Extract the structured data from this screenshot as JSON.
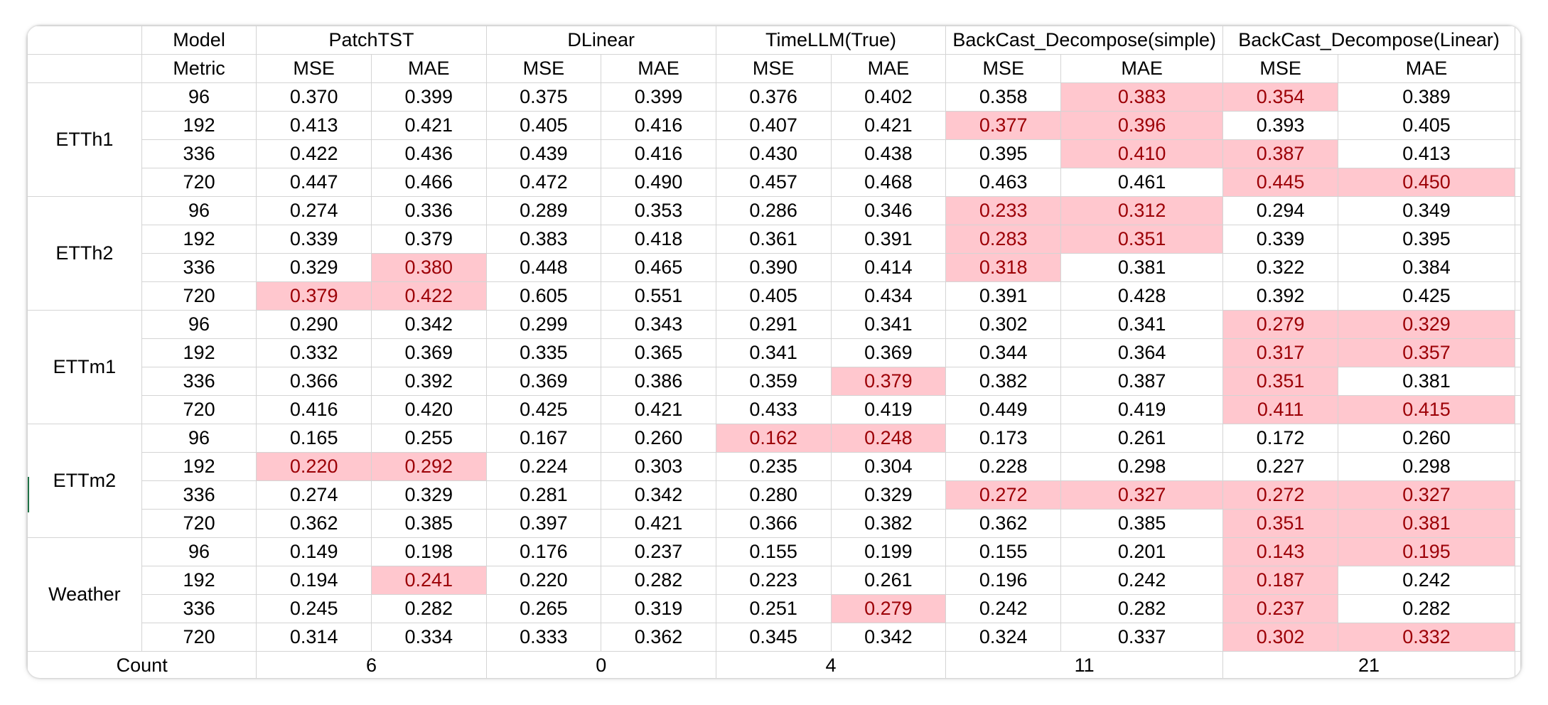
{
  "header": {
    "model_label": "Model",
    "metric_label": "Metric",
    "models": [
      "PatchTST",
      "DLinear",
      "TimeLLM(True)",
      "BackCast_Decompose(simple)",
      "BackCast_Decompose(Linear)"
    ],
    "metrics": [
      "MSE",
      "MAE",
      "MSE",
      "MAE",
      "MSE",
      "MAE",
      "MSE",
      "MAE",
      "MSE",
      "MAE"
    ]
  },
  "groups": [
    {
      "name": "ETTh1",
      "rows": [
        {
          "horizon": "96",
          "values": [
            "0.370",
            "0.399",
            "0.375",
            "0.399",
            "0.376",
            "0.402",
            "0.358",
            "0.383",
            "0.354",
            "0.389"
          ],
          "highlight": [
            7,
            8
          ]
        },
        {
          "horizon": "192",
          "values": [
            "0.413",
            "0.421",
            "0.405",
            "0.416",
            "0.407",
            "0.421",
            "0.377",
            "0.396",
            "0.393",
            "0.405"
          ],
          "highlight": [
            6,
            7
          ]
        },
        {
          "horizon": "336",
          "values": [
            "0.422",
            "0.436",
            "0.439",
            "0.416",
            "0.430",
            "0.438",
            "0.395",
            "0.410",
            "0.387",
            "0.413"
          ],
          "highlight": [
            7,
            8
          ]
        },
        {
          "horizon": "720",
          "values": [
            "0.447",
            "0.466",
            "0.472",
            "0.490",
            "0.457",
            "0.468",
            "0.463",
            "0.461",
            "0.445",
            "0.450"
          ],
          "highlight": [
            8,
            9
          ]
        }
      ]
    },
    {
      "name": "ETTh2",
      "rows": [
        {
          "horizon": "96",
          "values": [
            "0.274",
            "0.336",
            "0.289",
            "0.353",
            "0.286",
            "0.346",
            "0.233",
            "0.312",
            "0.294",
            "0.349"
          ],
          "highlight": [
            6,
            7
          ]
        },
        {
          "horizon": "192",
          "values": [
            "0.339",
            "0.379",
            "0.383",
            "0.418",
            "0.361",
            "0.391",
            "0.283",
            "0.351",
            "0.339",
            "0.395"
          ],
          "highlight": [
            6,
            7
          ]
        },
        {
          "horizon": "336",
          "values": [
            "0.329",
            "0.380",
            "0.448",
            "0.465",
            "0.390",
            "0.414",
            "0.318",
            "0.381",
            "0.322",
            "0.384"
          ],
          "highlight": [
            1,
            6
          ]
        },
        {
          "horizon": "720",
          "values": [
            "0.379",
            "0.422",
            "0.605",
            "0.551",
            "0.405",
            "0.434",
            "0.391",
            "0.428",
            "0.392",
            "0.425"
          ],
          "highlight": [
            0,
            1
          ]
        }
      ]
    },
    {
      "name": "ETTm1",
      "rows": [
        {
          "horizon": "96",
          "values": [
            "0.290",
            "0.342",
            "0.299",
            "0.343",
            "0.291",
            "0.341",
            "0.302",
            "0.341",
            "0.279",
            "0.329"
          ],
          "highlight": [
            8,
            9
          ]
        },
        {
          "horizon": "192",
          "values": [
            "0.332",
            "0.369",
            "0.335",
            "0.365",
            "0.341",
            "0.369",
            "0.344",
            "0.364",
            "0.317",
            "0.357"
          ],
          "highlight": [
            8,
            9
          ]
        },
        {
          "horizon": "336",
          "values": [
            "0.366",
            "0.392",
            "0.369",
            "0.386",
            "0.359",
            "0.379",
            "0.382",
            "0.387",
            "0.351",
            "0.381"
          ],
          "highlight": [
            5,
            8
          ]
        },
        {
          "horizon": "720",
          "values": [
            "0.416",
            "0.420",
            "0.425",
            "0.421",
            "0.433",
            "0.419",
            "0.449",
            "0.419",
            "0.411",
            "0.415"
          ],
          "highlight": [
            8,
            9
          ]
        }
      ]
    },
    {
      "name": "ETTm2",
      "rows": [
        {
          "horizon": "96",
          "values": [
            "0.165",
            "0.255",
            "0.167",
            "0.260",
            "0.162",
            "0.248",
            "0.173",
            "0.261",
            "0.172",
            "0.260"
          ],
          "highlight": [
            4,
            5
          ]
        },
        {
          "horizon": "192",
          "values": [
            "0.220",
            "0.292",
            "0.224",
            "0.303",
            "0.235",
            "0.304",
            "0.228",
            "0.298",
            "0.227",
            "0.298"
          ],
          "highlight": [
            0,
            1
          ]
        },
        {
          "horizon": "336",
          "values": [
            "0.274",
            "0.329",
            "0.281",
            "0.342",
            "0.280",
            "0.329",
            "0.272",
            "0.327",
            "0.272",
            "0.327"
          ],
          "highlight": [
            6,
            7,
            8,
            9
          ]
        },
        {
          "horizon": "720",
          "values": [
            "0.362",
            "0.385",
            "0.397",
            "0.421",
            "0.366",
            "0.382",
            "0.362",
            "0.385",
            "0.351",
            "0.381"
          ],
          "highlight": [
            8,
            9
          ]
        }
      ]
    },
    {
      "name": "Weather",
      "rows": [
        {
          "horizon": "96",
          "values": [
            "0.149",
            "0.198",
            "0.176",
            "0.237",
            "0.155",
            "0.199",
            "0.155",
            "0.201",
            "0.143",
            "0.195"
          ],
          "highlight": [
            8,
            9
          ]
        },
        {
          "horizon": "192",
          "values": [
            "0.194",
            "0.241",
            "0.220",
            "0.282",
            "0.223",
            "0.261",
            "0.196",
            "0.242",
            "0.187",
            "0.242"
          ],
          "highlight": [
            1,
            8
          ]
        },
        {
          "horizon": "336",
          "values": [
            "0.245",
            "0.282",
            "0.265",
            "0.319",
            "0.251",
            "0.279",
            "0.242",
            "0.282",
            "0.237",
            "0.282"
          ],
          "highlight": [
            5,
            8
          ]
        },
        {
          "horizon": "720",
          "values": [
            "0.314",
            "0.334",
            "0.333",
            "0.362",
            "0.345",
            "0.342",
            "0.324",
            "0.337",
            "0.302",
            "0.332"
          ],
          "highlight": [
            8,
            9
          ]
        }
      ]
    }
  ],
  "count": {
    "label": "Count",
    "values": [
      "6",
      "0",
      "4",
      "11",
      "21"
    ]
  },
  "colors": {
    "highlight_fill": "#ffc7ce",
    "highlight_text": "#9c0006",
    "gridline": "#d4d4d4",
    "selection_marker": "#1e7145"
  }
}
